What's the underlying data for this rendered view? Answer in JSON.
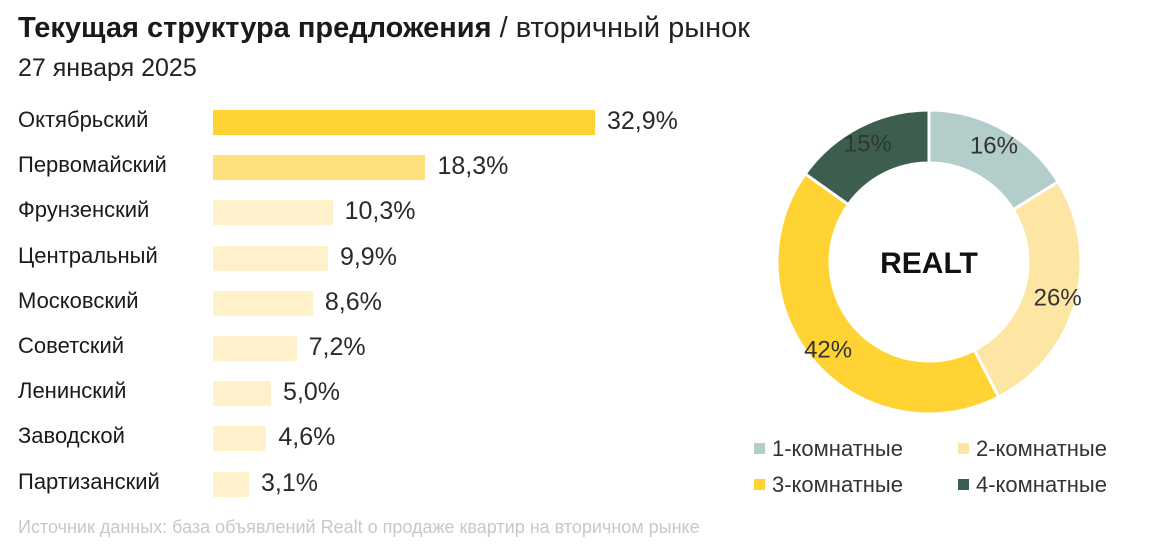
{
  "header": {
    "title_bold": "Текущая структура предложения",
    "title_sep": " / ",
    "title_sub": "вторичный рынок",
    "date": "27 января 2025"
  },
  "logo": "REALT",
  "source": "Источник данных: база объявлений Realt о продаже квартир на вторичном рынке",
  "chart_data": [
    {
      "type": "bar",
      "orientation": "horizontal",
      "categories": [
        "Октябрьский",
        "Первомайский",
        "Фрунзенский",
        "Центральный",
        "Московский",
        "Советский",
        "Ленинский",
        "Заводской",
        "Партизанский"
      ],
      "values": [
        32.9,
        18.3,
        10.3,
        9.9,
        8.6,
        7.2,
        5.0,
        4.6,
        3.1
      ],
      "value_labels": [
        "32,9%",
        "18,3%",
        "10,3%",
        "9,9%",
        "8,6%",
        "7,2%",
        "5,0%",
        "4,6%",
        "3,1%"
      ],
      "colors": [
        "#ffd333",
        "#ffe07a",
        "#fff1c9",
        "#fff1c9",
        "#fff1c9",
        "#fff1c9",
        "#fff1c9",
        "#fff1c9",
        "#fff1c9"
      ],
      "title": "",
      "xlabel": "",
      "ylabel": ""
    },
    {
      "type": "pie",
      "donut": true,
      "categories": [
        "1-комнатные",
        "2-комнатные",
        "3-комнатные",
        "4-комнатные"
      ],
      "values": [
        16,
        26,
        42,
        15
      ],
      "value_labels": [
        "16%",
        "26%",
        "42%",
        "15%"
      ],
      "colors": [
        "#b3cdcb",
        "#fde5a3",
        "#ffd333",
        "#3d5e4e"
      ],
      "label_colors": [
        "#333333",
        "#333333",
        "#333333",
        "#2b3a33"
      ],
      "legend_position": "bottom"
    }
  ]
}
